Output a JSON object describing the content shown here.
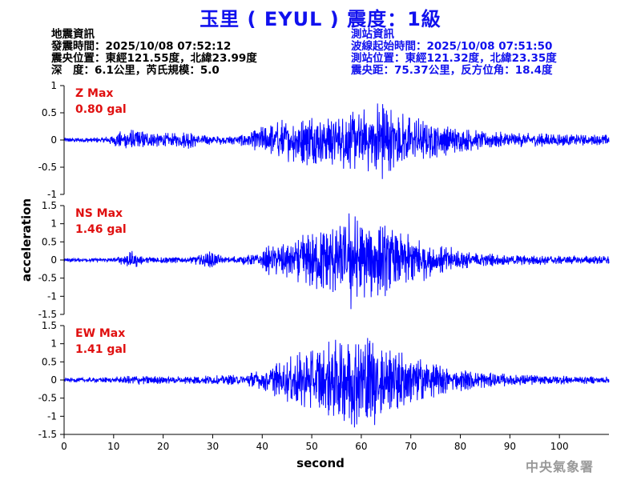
{
  "title": "玉里 ( EYUL ) 震度：1級",
  "quake_info": {
    "heading": "地震資訊",
    "time": "發震時間：2025/10/08 07:52:12",
    "epicenter": "震央位置：東經121.55度，北緯23.99度",
    "depth_mag": "深　度：6.1公里，芮氏規模：5.0"
  },
  "station_info": {
    "heading": "測站資訊",
    "wave_start": "波線起始時間：2025/10/08 07:51:50",
    "location": "測站位置：東經121.32度，北緯23.35度",
    "distance": "震央距：75.37公里，反方位角：18.4度"
  },
  "colors": {
    "trace": "#0000ff",
    "label": "#e01010",
    "title": "#1111ee"
  },
  "watermark": "中央氣象署",
  "chart_data": {
    "type": "line",
    "xlabel": "second",
    "ylabel": "acceleration",
    "xlim": [
      0,
      110
    ],
    "x_ticks": [
      0,
      10,
      20,
      30,
      40,
      50,
      60,
      70,
      80,
      90,
      100
    ],
    "panels": [
      {
        "name": "Z Max",
        "max_text": "0.80 gal",
        "ylim": [
          -1,
          1
        ],
        "y_ticks": [
          1,
          0.5,
          0,
          -0.5,
          -1
        ],
        "y_tick_labels": [
          "1",
          "0.5",
          "0",
          "-0.5",
          "-1"
        ],
        "envelope": [
          [
            0,
            0.04
          ],
          [
            8,
            0.05
          ],
          [
            12,
            0.18
          ],
          [
            14,
            0.22
          ],
          [
            17,
            0.15
          ],
          [
            22,
            0.12
          ],
          [
            25,
            0.16
          ],
          [
            28,
            0.1
          ],
          [
            31,
            0.08
          ],
          [
            35,
            0.1
          ],
          [
            38,
            0.16
          ],
          [
            40,
            0.28
          ],
          [
            43,
            0.38
          ],
          [
            46,
            0.4
          ],
          [
            50,
            0.48
          ],
          [
            53,
            0.45
          ],
          [
            56,
            0.52
          ],
          [
            59,
            0.55
          ],
          [
            62,
            0.6
          ],
          [
            64,
            0.8
          ],
          [
            66,
            0.6
          ],
          [
            68,
            0.5
          ],
          [
            71,
            0.42
          ],
          [
            74,
            0.33
          ],
          [
            77,
            0.28
          ],
          [
            80,
            0.22
          ],
          [
            85,
            0.16
          ],
          [
            90,
            0.14
          ],
          [
            95,
            0.12
          ],
          [
            100,
            0.12
          ],
          [
            105,
            0.1
          ],
          [
            110,
            0.1
          ]
        ]
      },
      {
        "name": "NS Max",
        "max_text": "1.46 gal",
        "ylim": [
          -1.5,
          1.5
        ],
        "y_ticks": [
          1.5,
          1,
          0.5,
          0,
          -0.5,
          -1,
          -1.5
        ],
        "y_tick_labels": [
          "1.5",
          "1",
          "0.5",
          "0",
          "-0.5",
          "-1",
          "-1.5"
        ],
        "envelope": [
          [
            0,
            0.05
          ],
          [
            10,
            0.06
          ],
          [
            14,
            0.25
          ],
          [
            16,
            0.1
          ],
          [
            25,
            0.08
          ],
          [
            30,
            0.25
          ],
          [
            32,
            0.1
          ],
          [
            38,
            0.15
          ],
          [
            42,
            0.45
          ],
          [
            46,
            0.55
          ],
          [
            50,
            0.8
          ],
          [
            53,
            0.9
          ],
          [
            56,
            1.0
          ],
          [
            58,
            1.46
          ],
          [
            60,
            1.0
          ],
          [
            62,
            1.1
          ],
          [
            64,
            1.0
          ],
          [
            66,
            0.9
          ],
          [
            69,
            0.7
          ],
          [
            72,
            0.6
          ],
          [
            75,
            0.45
          ],
          [
            78,
            0.35
          ],
          [
            82,
            0.22
          ],
          [
            86,
            0.18
          ],
          [
            90,
            0.15
          ],
          [
            100,
            0.12
          ],
          [
            110,
            0.12
          ]
        ]
      },
      {
        "name": "EW Max",
        "max_text": "1.41 gal",
        "ylim": [
          -1.5,
          1.5
        ],
        "y_ticks": [
          1.5,
          1,
          0.5,
          0,
          -0.5,
          -1,
          -1.5
        ],
        "y_tick_labels": [
          "1.5",
          "1",
          "0.5",
          "0",
          "-0.5",
          "-1",
          "-1.5"
        ],
        "envelope": [
          [
            0,
            0.06
          ],
          [
            10,
            0.08
          ],
          [
            14,
            0.15
          ],
          [
            20,
            0.1
          ],
          [
            30,
            0.12
          ],
          [
            36,
            0.15
          ],
          [
            40,
            0.3
          ],
          [
            43,
            0.5
          ],
          [
            46,
            0.7
          ],
          [
            50,
            0.9
          ],
          [
            52,
            1.0
          ],
          [
            55,
            1.1
          ],
          [
            58,
            1.41
          ],
          [
            60,
            1.2
          ],
          [
            62,
            1.3
          ],
          [
            65,
            1.0
          ],
          [
            68,
            0.8
          ],
          [
            72,
            0.6
          ],
          [
            75,
            0.45
          ],
          [
            80,
            0.3
          ],
          [
            86,
            0.2
          ],
          [
            92,
            0.15
          ],
          [
            100,
            0.12
          ],
          [
            110,
            0.1
          ]
        ]
      }
    ]
  }
}
